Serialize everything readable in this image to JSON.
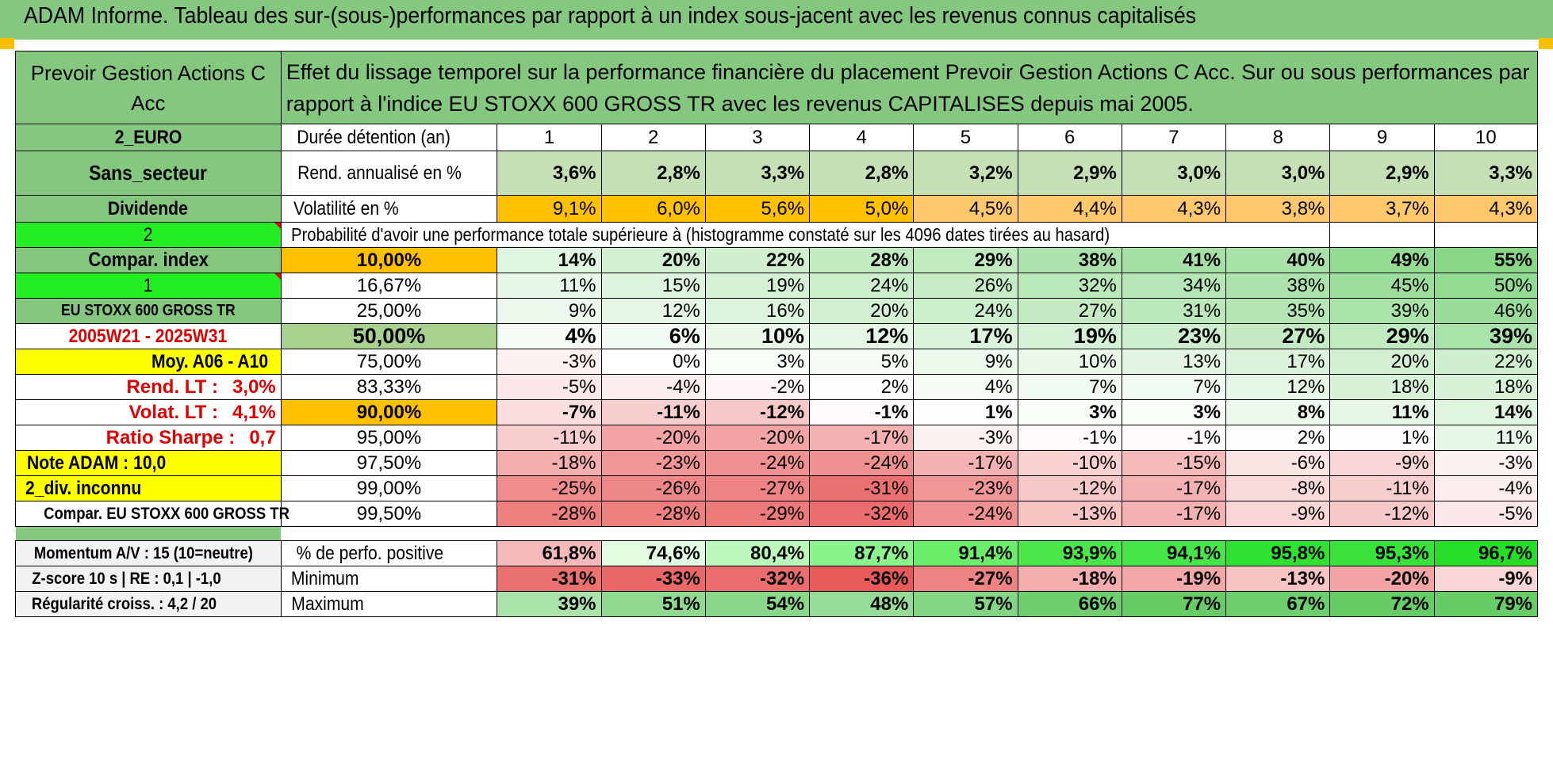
{
  "title": "ADAM Informe. Tableau des sur-(sous-)performances par rapport à un index sous-jacent avec les revenus connus capitalisés",
  "left_panel": {
    "fund_name": "Prevoir Gestion Actions C Acc",
    "currency": "2_EURO",
    "sector": "Sans_secteur",
    "dividend": "Dividende",
    "two": "2",
    "compar_index": "Compar. index",
    "one": "1",
    "index_name": "EU STOXX 600 GROSS TR",
    "period": "2005W21 - 2025W31",
    "moy": "Moy. A06 - A10",
    "rend_lt_label": "Rend. LT :",
    "rend_lt_value": "3,0%",
    "volat_lt_label": "Volat. LT :",
    "volat_lt_value": "4,1%",
    "sharpe_label": "Ratio Sharpe :",
    "sharpe_value": "0,7",
    "note_adam": "Note ADAM : 10,0",
    "div_inconnu": "2_div. inconnu",
    "compar_full": "Compar. EU STOXX 600 GROSS TR",
    "momentum": "Momentum A/V : 15 (10=neutre)",
    "zscore": "Z-score 10 s | RE : 0,1 | -1,0",
    "regularite": "Régularité croiss. : 4,2 / 20"
  },
  "description": "Effet du lissage temporel sur la performance financière du placement Prevoir Gestion Actions C Acc. Sur ou sous performances par rapport à l'indice EU STOXX 600 GROSS TR avec les revenus CAPITALISES depuis mai 2005.",
  "row_labels": {
    "duration": "Durée détention (an)",
    "rend": "Rend. annualisé en %",
    "vol": "Volatilité en %",
    "proba": "Probabilité d'avoir une performance totale supérieure à (histogramme constaté sur les 4096 dates tirées au hasard)",
    "pos": "% de perfo. positive",
    "min": "Minimum",
    "max": "Maximum"
  },
  "years": [
    "1",
    "2",
    "3",
    "4",
    "5",
    "6",
    "7",
    "8",
    "9",
    "10"
  ],
  "rend": [
    "3,6%",
    "2,8%",
    "3,3%",
    "2,8%",
    "3,2%",
    "2,9%",
    "3,0%",
    "3,0%",
    "2,9%",
    "3,3%"
  ],
  "vol": [
    "9,1%",
    "6,0%",
    "5,6%",
    "5,0%",
    "4,5%",
    "4,4%",
    "4,3%",
    "3,8%",
    "3,7%",
    "4,3%"
  ],
  "prob_rows": [
    {
      "p": "10,00%",
      "v": [
        "14%",
        "20%",
        "22%",
        "28%",
        "29%",
        "38%",
        "41%",
        "40%",
        "49%",
        "55%"
      ]
    },
    {
      "p": "16,67%",
      "v": [
        "11%",
        "15%",
        "19%",
        "24%",
        "26%",
        "32%",
        "34%",
        "38%",
        "45%",
        "50%"
      ]
    },
    {
      "p": "25,00%",
      "v": [
        "9%",
        "12%",
        "16%",
        "20%",
        "24%",
        "27%",
        "31%",
        "35%",
        "39%",
        "46%"
      ]
    },
    {
      "p": "50,00%",
      "v": [
        "4%",
        "6%",
        "10%",
        "12%",
        "17%",
        "19%",
        "23%",
        "27%",
        "29%",
        "39%"
      ]
    },
    {
      "p": "75,00%",
      "v": [
        "-3%",
        "0%",
        "3%",
        "5%",
        "9%",
        "10%",
        "13%",
        "17%",
        "20%",
        "22%"
      ]
    },
    {
      "p": "83,33%",
      "v": [
        "-5%",
        "-4%",
        "-2%",
        "2%",
        "4%",
        "7%",
        "7%",
        "12%",
        "18%",
        "18%"
      ]
    },
    {
      "p": "90,00%",
      "v": [
        "-7%",
        "-11%",
        "-12%",
        "-1%",
        "1%",
        "3%",
        "3%",
        "8%",
        "11%",
        "14%"
      ]
    },
    {
      "p": "95,00%",
      "v": [
        "-11%",
        "-20%",
        "-20%",
        "-17%",
        "-3%",
        "-1%",
        "-1%",
        "2%",
        "1%",
        "11%"
      ]
    },
    {
      "p": "97,50%",
      "v": [
        "-18%",
        "-23%",
        "-24%",
        "-24%",
        "-17%",
        "-10%",
        "-15%",
        "-6%",
        "-9%",
        "-3%"
      ]
    },
    {
      "p": "99,00%",
      "v": [
        "-25%",
        "-26%",
        "-27%",
        "-31%",
        "-23%",
        "-12%",
        "-17%",
        "-8%",
        "-11%",
        "-4%"
      ]
    },
    {
      "p": "99,50%",
      "v": [
        "-28%",
        "-28%",
        "-29%",
        "-32%",
        "-24%",
        "-13%",
        "-17%",
        "-9%",
        "-12%",
        "-5%"
      ]
    }
  ],
  "pos": [
    "61,8%",
    "74,6%",
    "80,4%",
    "87,7%",
    "91,4%",
    "93,9%",
    "94,1%",
    "95,8%",
    "95,3%",
    "96,7%"
  ],
  "min": [
    "-31%",
    "-33%",
    "-32%",
    "-36%",
    "-27%",
    "-18%",
    "-19%",
    "-13%",
    "-20%",
    "-9%"
  ],
  "max": [
    "39%",
    "51%",
    "54%",
    "48%",
    "57%",
    "66%",
    "77%",
    "67%",
    "72%",
    "79%"
  ],
  "colors": {
    "header_green": "#84c77e",
    "bright_green": "#22ee22",
    "orange": "#ffc000",
    "yellow": "#ffff00",
    "red_text": "#e00000"
  }
}
